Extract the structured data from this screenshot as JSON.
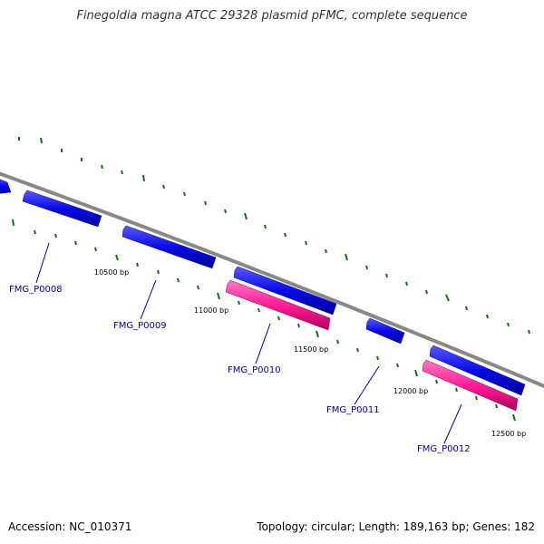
{
  "title": "Finegoldia magna ATCC 29328 plasmid pFMC, complete sequence",
  "footer": {
    "accession": "Accession: NC_010371",
    "summary": "Topology: circular; Length: 189,163 bp; Genes: 182"
  },
  "colors": {
    "backbone": "#888888",
    "forward_gene": "#0a0ae6",
    "reverse_gene": "#ff1e96",
    "tick": "#157015",
    "label": "#0000a0"
  },
  "genes": [
    {
      "name": "FMG_P0008",
      "color": "forward_gene"
    },
    {
      "name": "FMG_P0009",
      "color": "forward_gene"
    },
    {
      "name": "FMG_P0010",
      "color": "reverse_gene"
    },
    {
      "name": "FMG_P0011",
      "color": "forward_gene"
    },
    {
      "name": "FMG_P0012",
      "color": "reverse_gene"
    }
  ],
  "bp_labels": [
    "10500 bp",
    "11000 bp",
    "11500 bp",
    "12000 bp",
    "12500 bp"
  ]
}
